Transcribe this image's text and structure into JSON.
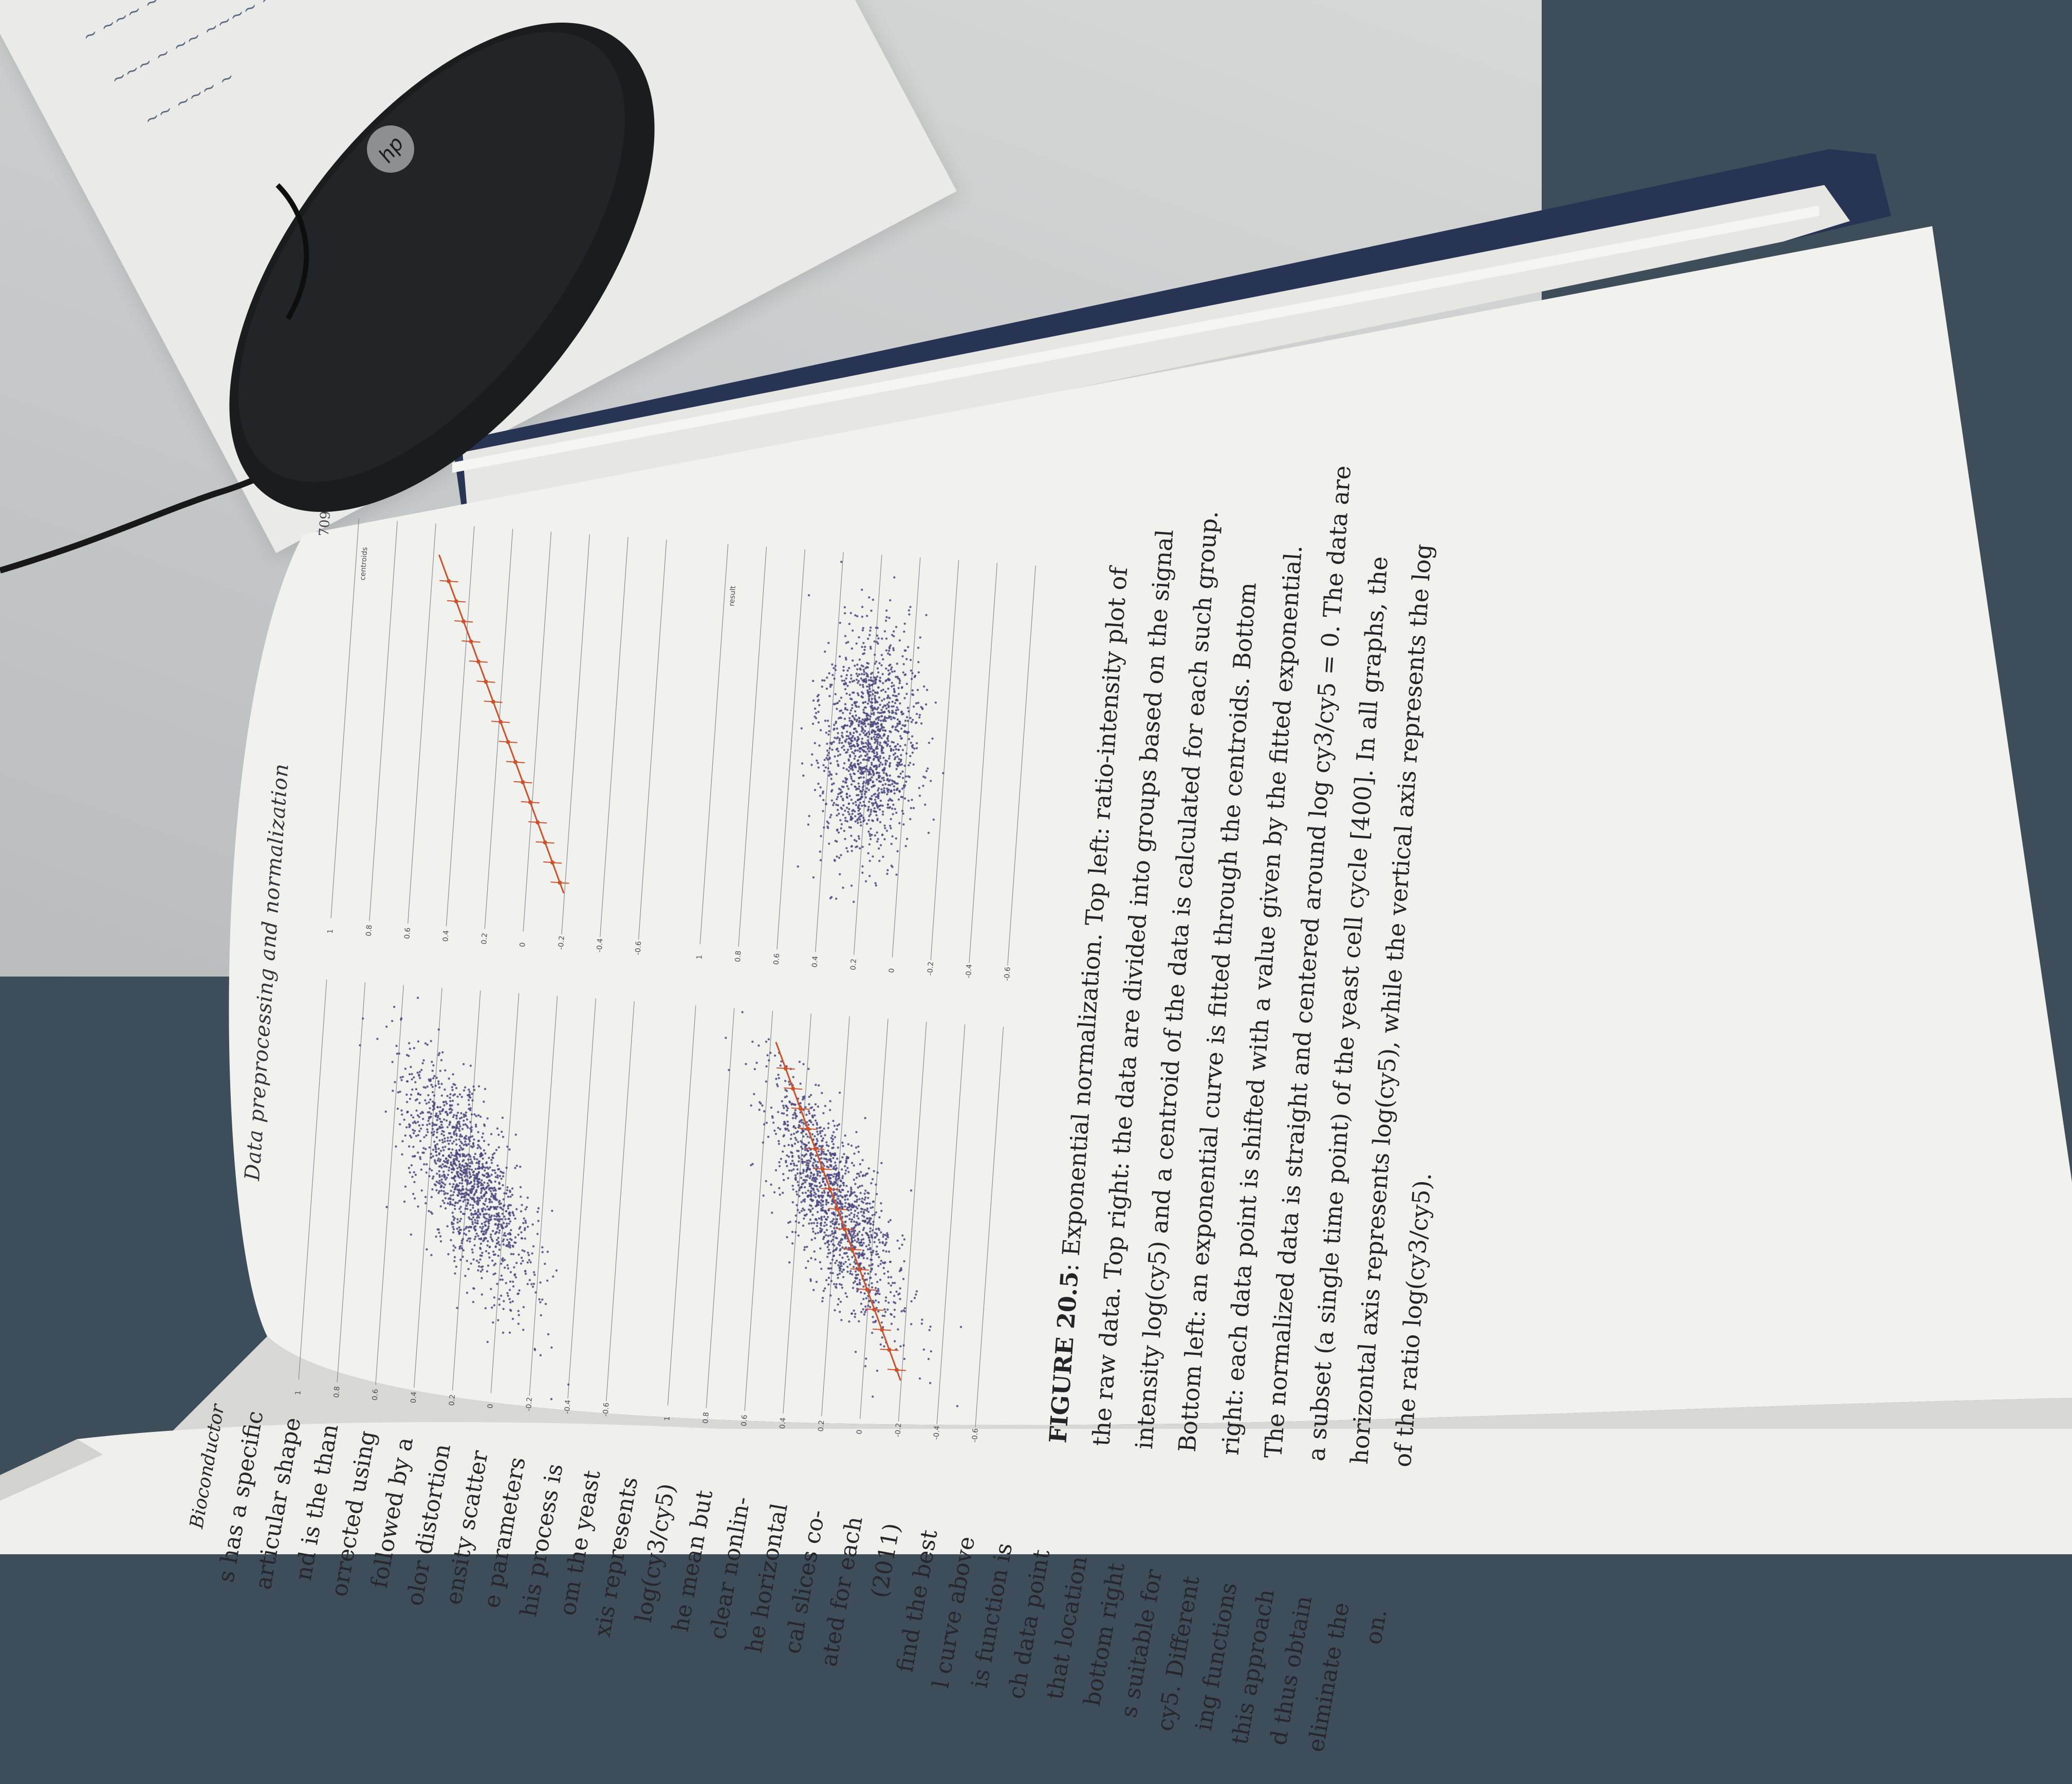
{
  "scene": {
    "description_colors": {
      "desk": "#cfd1d0",
      "background_blue": "#3e4d5a",
      "book_cover": "#2a3552",
      "page": "#f1f1ee",
      "dot_color": "#4a4880",
      "fit_color": "#d0502a"
    },
    "objects": {
      "mouse_logo": "hp"
    }
  },
  "right_page": {
    "running_head": "Data preprocessing and normalization",
    "page_number": "709",
    "figure_caption": {
      "label": "FIGURE 20.5",
      "lines": [
        ": Exponential normalization. Top left: ratio-intensity plot of",
        "the raw data. Top right: the data are divided into groups based on the signal",
        "intensity log(cy5) and a centroid of the data is calculated for each such group.",
        "Bottom left: an exponential curve is fitted through the centroids. Bottom",
        "right: each data point is shifted with a value given by the fitted exponential.",
        "The normalized data is straight and centered around log cy3/cy5 = 0. The data are",
        "a subset (a single time point) of the yeast cell cycle [400]. In all graphs, the",
        "horizontal axis represents log(cy5), while the vertical axis represents the log",
        "of the ratio log(cy3/cy5)."
      ]
    }
  },
  "left_page": {
    "header_fragment": "Bioconductor",
    "lines": [
      "s has a specific",
      "articular shape",
      "nd is the than",
      "orrected using",
      "followed by a",
      "olor distortion",
      "ensity scatter",
      "e parameters",
      "his process is",
      "om the yeast",
      "xis represents",
      "log(cy3/cy5)",
      "he mean but",
      "clear nonlin-",
      "he horizontal",
      "cal slices co-",
      "ated for each",
      "(2011)",
      "find the best",
      "l curve above",
      "is function is",
      "ch data point",
      "that location",
      "bottom right",
      "s suitable for",
      "cy5. Different",
      "ing functions",
      "this approach",
      "d thus obtain",
      "eliminate the",
      "on."
    ]
  },
  "plots": [
    {
      "name": "top-left",
      "y_ticks": [
        "1",
        "0.8",
        "0.6",
        "0.4",
        "0.2",
        "0",
        "-0.2",
        "-0.4",
        "-0.6"
      ],
      "label": ""
    },
    {
      "name": "top-right",
      "y_ticks": [
        "1",
        "0.8",
        "0.6",
        "0.4",
        "0.2",
        "0",
        "-0.2",
        "-0.4",
        "-0.6"
      ],
      "label": "centroids"
    },
    {
      "name": "bottom-left",
      "y_ticks": [
        "1",
        "0.8",
        "0.6",
        "0.4",
        "0.2",
        "0",
        "-0.2",
        "-0.4",
        "-0.6"
      ],
      "label": ""
    },
    {
      "name": "bottom-right",
      "y_ticks": [
        "1",
        "0.8",
        "0.6",
        "0.4",
        "0.2",
        "0",
        "-0.2",
        "-0.4",
        "-0.6"
      ],
      "label": "result"
    }
  ]
}
